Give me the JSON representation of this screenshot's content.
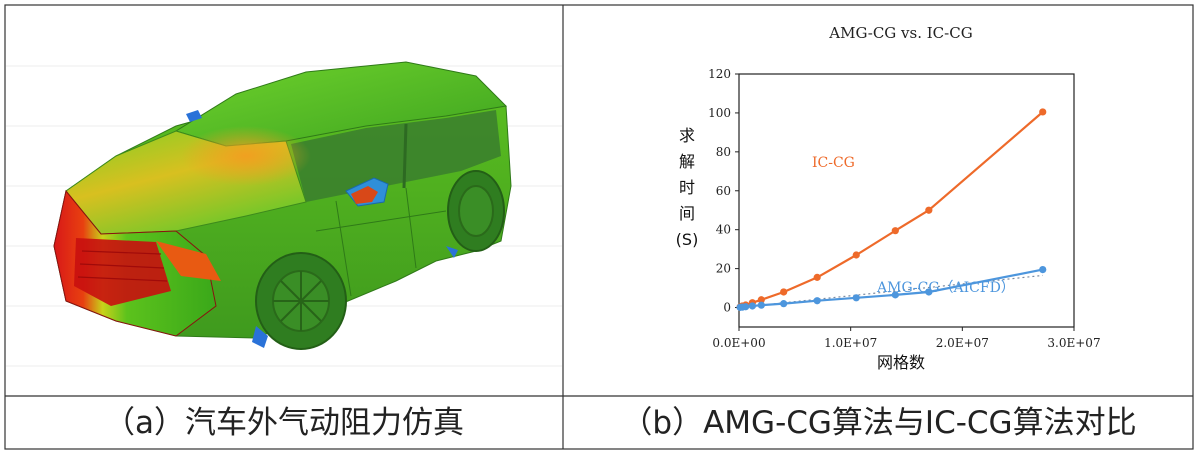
{
  "panels": {
    "left_caption": "（a）汽车外气动阻力仿真",
    "right_caption": "（b）AMG-CG算法与IC-CG算法对比"
  },
  "colors": {
    "ic": "#ee6a2a",
    "amg": "#4d96dd",
    "trend": "#7a8aa0"
  },
  "chart_data": {
    "type": "line",
    "title": "AMG-CG vs. IC-CG",
    "xlabel": "网格数",
    "ylabel_chars": [
      "求",
      "解",
      "时",
      "间",
      "(S)"
    ],
    "xlim": [
      0,
      30000000
    ],
    "ylim": [
      -10,
      120
    ],
    "xticks": [
      {
        "value": 0,
        "label": "0.0E+00"
      },
      {
        "value": 10000000,
        "label": "1.0E+07"
      },
      {
        "value": 20000000,
        "label": "2.0E+07"
      },
      {
        "value": 30000000,
        "label": "3.0E+07"
      }
    ],
    "yticks": [
      {
        "value": 0,
        "label": "0"
      },
      {
        "value": 20,
        "label": "20"
      },
      {
        "value": 40,
        "label": "40"
      },
      {
        "value": 60,
        "label": "60"
      },
      {
        "value": 80,
        "label": "80"
      },
      {
        "value": 100,
        "label": "100"
      },
      {
        "value": 120,
        "label": "120"
      }
    ],
    "series": [
      {
        "name": "IC-CG",
        "points": [
          [
            100000,
            0.3
          ],
          [
            300000,
            0.8
          ],
          [
            600000,
            1.3
          ],
          [
            1200000,
            2.5
          ],
          [
            2000000,
            4
          ],
          [
            4000000,
            8
          ],
          [
            7000000,
            15.5
          ],
          [
            10500000,
            27
          ],
          [
            14000000,
            39.5
          ],
          [
            17000000,
            50
          ],
          [
            27200000,
            100.5
          ]
        ]
      },
      {
        "name": "AMG-CG（AICFD）",
        "points": [
          [
            100000,
            0.1
          ],
          [
            300000,
            0.2
          ],
          [
            600000,
            0.4
          ],
          [
            1200000,
            0.8
          ],
          [
            2000000,
            1.2
          ],
          [
            4000000,
            2
          ],
          [
            7000000,
            3.5
          ],
          [
            10500000,
            5
          ],
          [
            14000000,
            6.5
          ],
          [
            17000000,
            8
          ],
          [
            27200000,
            19.5
          ]
        ]
      }
    ],
    "trendline": {
      "series": "AMG-CG（AICFD）",
      "points": [
        [
          0,
          0
        ],
        [
          27200000,
          16.5
        ]
      ]
    }
  }
}
